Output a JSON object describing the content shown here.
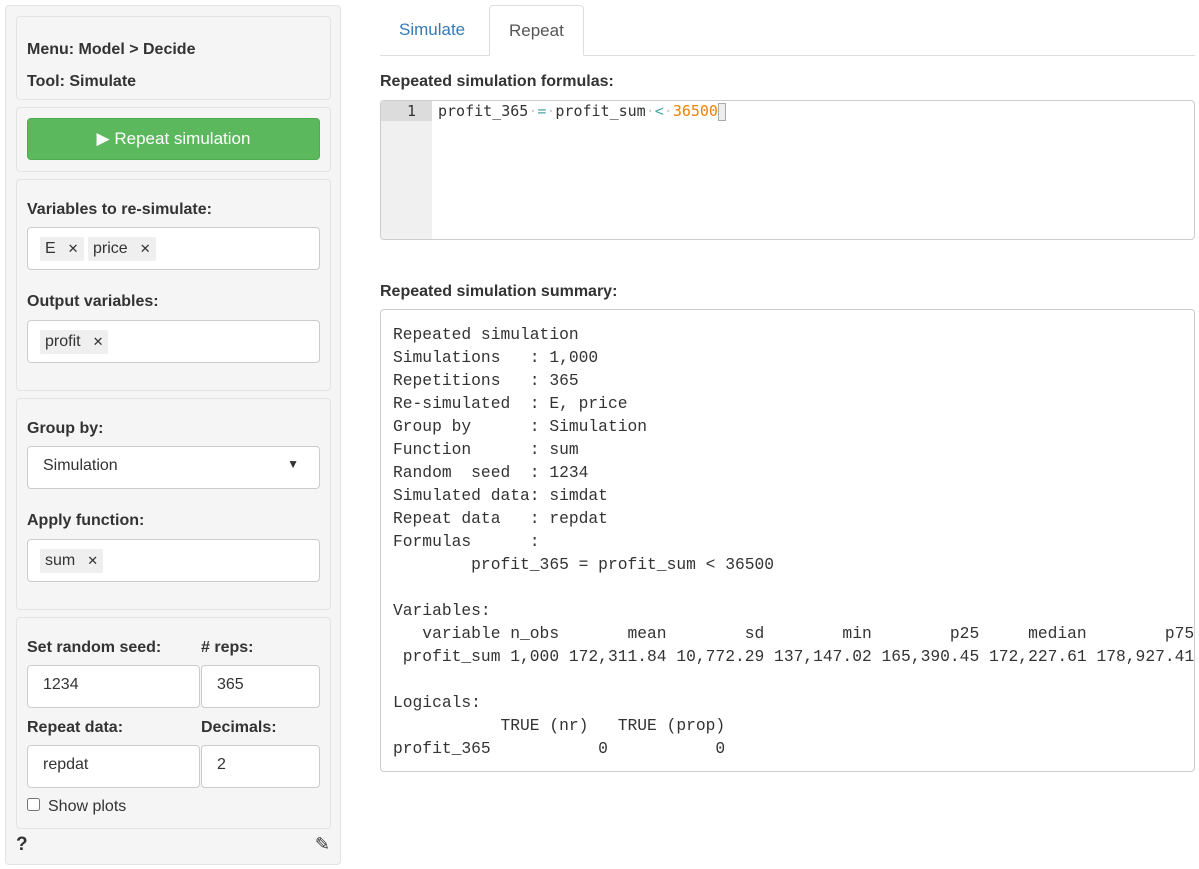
{
  "sidebar": {
    "menu": "Menu: Model > Decide",
    "tool": "Tool: Simulate",
    "run_button": "Repeat simulation",
    "resim_label": "Variables to re-simulate:",
    "resim_tags": [
      "E",
      "price"
    ],
    "output_label": "Output variables:",
    "output_tags": [
      "profit"
    ],
    "group_label": "Group by:",
    "group_value": "Simulation",
    "func_label": "Apply function:",
    "func_tags": [
      "sum"
    ],
    "seed_label": "Set random seed:",
    "seed_value": "1234",
    "reps_label": "# reps:",
    "reps_value": "365",
    "repdata_label": "Repeat data:",
    "repdata_value": "repdat",
    "dec_label": "Decimals:",
    "dec_value": "2",
    "show_plots": "Show plots",
    "show_plots_checked": false
  },
  "tabs": [
    {
      "label": "Simulate",
      "active": false
    },
    {
      "label": "Repeat",
      "active": true
    }
  ],
  "formulas": {
    "title": "Repeated simulation formulas:",
    "line_no": "1",
    "tokens": [
      "profit_365",
      "=",
      "profit_sum",
      "<",
      "36500"
    ]
  },
  "summary": {
    "title": "Repeated simulation summary:",
    "lines": [
      "Repeated simulation",
      "Simulations   : 1,000",
      "Repetitions   : 365",
      "Re-simulated  : E, price",
      "Group by      : Simulation",
      "Function      : sum",
      "Random  seed  : 1234",
      "Simulated data: simdat",
      "Repeat data   : repdat",
      "Formulas      :",
      "        profit_365 = profit_sum < 36500",
      "",
      "Variables:",
      "   variable n_obs       mean        sd        min        p25     median        p75",
      " profit_sum 1,000 172,311.84 10,772.29 137,147.02 165,390.45 172,227.61 178,927.41",
      "",
      "Logicals:",
      "           TRUE (nr)   TRUE (prop)",
      "profit_365           0           0"
    ]
  },
  "colors": {
    "accent": "#337ab7",
    "success": "#5cb85c",
    "number": "#f08000",
    "operator": "#4aa6a6"
  }
}
